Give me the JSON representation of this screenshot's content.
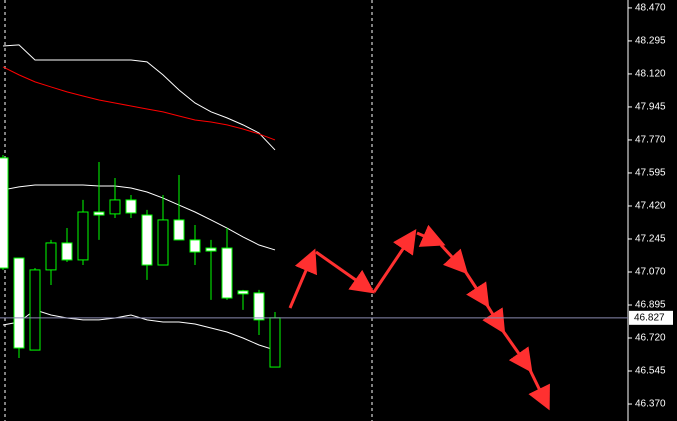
{
  "chart_data": {
    "type": "candlestick",
    "open": [
      47.675,
      47.144,
      46.656,
      47.081,
      47.224,
      47.134,
      47.388,
      47.378,
      47.452,
      47.372,
      47.107,
      47.346,
      47.24,
      47.197,
      47.197,
      46.97,
      46.959,
      46.566
    ],
    "high": [
      47.69,
      47.144,
      47.091,
      47.24,
      47.303,
      47.452,
      47.653,
      47.568,
      47.478,
      47.399,
      47.478,
      47.584,
      47.319,
      47.24,
      47.303,
      46.975,
      46.975,
      46.858
    ],
    "low": [
      47.081,
      46.614,
      46.656,
      47.001,
      47.123,
      47.107,
      47.24,
      47.356,
      47.356,
      47.028,
      47.107,
      47.24,
      47.107,
      46.922,
      46.922,
      46.869,
      46.736,
      46.566
    ],
    "close": [
      47.091,
      46.667,
      47.081,
      47.224,
      47.134,
      47.388,
      47.372,
      47.452,
      47.383,
      47.107,
      47.346,
      47.24,
      47.176,
      47.181,
      46.932,
      46.954,
      46.816,
      46.827
    ],
    "bull_color": "#00ff00",
    "bear_color": "#ffffff",
    "indicators": [
      {
        "color": "#ffffff",
        "values": [
          48.268,
          48.274,
          48.194,
          48.194,
          48.194,
          48.194,
          48.194,
          48.194,
          48.194,
          48.184,
          48.115,
          48.035,
          47.966,
          47.919,
          47.887,
          47.85,
          47.807,
          47.717
        ]
      },
      {
        "color": "#ff0000",
        "values": [
          48.157,
          48.115,
          48.078,
          48.051,
          48.025,
          48.003,
          47.982,
          47.966,
          47.95,
          47.934,
          47.919,
          47.897,
          47.876,
          47.865,
          47.85,
          47.828,
          47.802,
          47.77
        ]
      },
      {
        "color": "#ffffff",
        "values": [
          47.505,
          47.521,
          47.531,
          47.531,
          47.531,
          47.531,
          47.526,
          47.526,
          47.515,
          47.494,
          47.462,
          47.425,
          47.388,
          47.346,
          47.303,
          47.256,
          47.213,
          47.187
        ]
      },
      {
        "color": "#ffffff",
        "values": [
          46.789,
          46.805,
          46.869,
          46.842,
          46.826,
          46.816,
          46.816,
          46.826,
          46.842,
          46.816,
          46.805,
          46.805,
          46.794,
          46.773,
          46.752,
          46.72,
          46.683,
          46.656
        ]
      }
    ],
    "current_price": 46.827,
    "ylim": [
      46.28,
      48.512
    ],
    "yticks": [
      {
        "value": 48.47,
        "label": "48.470"
      },
      {
        "value": 48.295,
        "label": "48.295"
      },
      {
        "value": 48.12,
        "label": "48.120"
      },
      {
        "value": 47.945,
        "label": "47.945"
      },
      {
        "value": 47.77,
        "label": "47.770"
      },
      {
        "value": 47.595,
        "label": "47.595"
      },
      {
        "value": 47.42,
        "label": "47.420"
      },
      {
        "value": 47.245,
        "label": "47.245"
      },
      {
        "value": 47.07,
        "label": "47.070"
      },
      {
        "value": 46.895,
        "label": "46.895"
      },
      {
        "value": 46.72,
        "label": "46.720"
      },
      {
        "value": 46.545,
        "label": "46.545"
      },
      {
        "value": 46.37,
        "label": "46.370"
      }
    ]
  }
}
